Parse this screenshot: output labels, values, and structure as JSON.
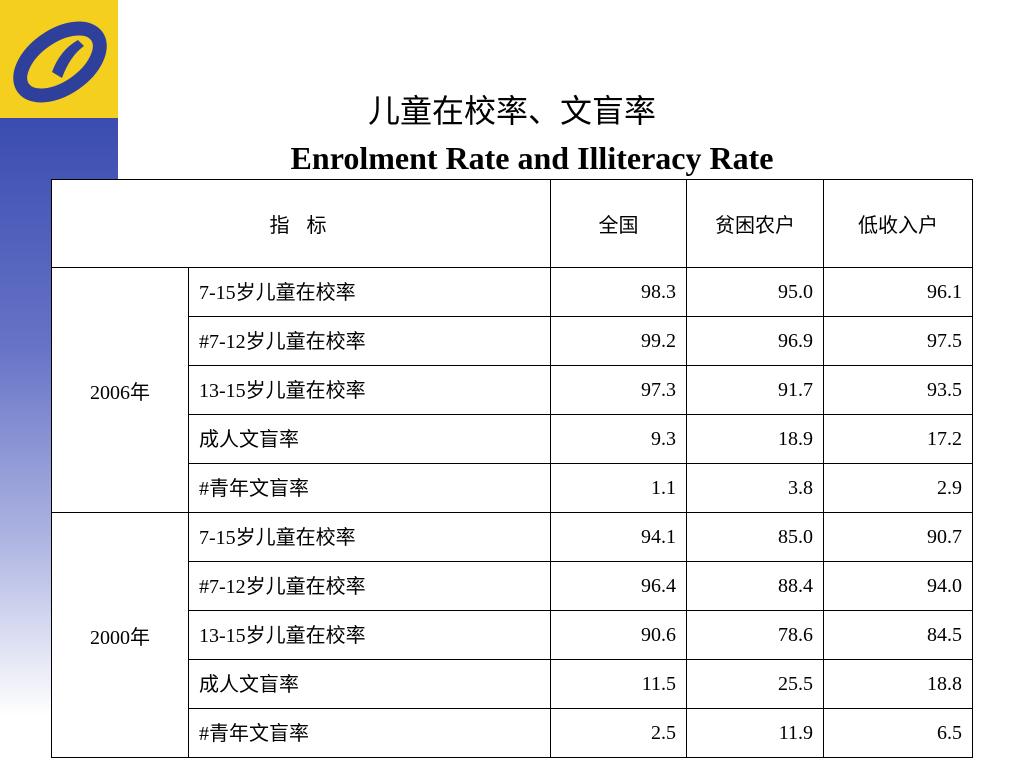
{
  "title_cn": "儿童在校率、文盲率",
  "title_en": "Enrolment Rate  and Illiteracy Rate",
  "headers": {
    "indicator": "指 标",
    "national": "全国",
    "poor": "贫困农户",
    "low_income": "低收入户"
  },
  "groups": [
    {
      "year": "2006年",
      "rows": [
        {
          "name": "7-15岁儿童在校率",
          "national": "98.3",
          "poor": "95.0",
          "low_income": "96.1"
        },
        {
          "name": "#7-12岁儿童在校率",
          "national": "99.2",
          "poor": "96.9",
          "low_income": "97.5"
        },
        {
          "name": "13-15岁儿童在校率",
          "national": "97.3",
          "poor": "91.7",
          "low_income": "93.5"
        },
        {
          "name": "成人文盲率",
          "national": "9.3",
          "poor": "18.9",
          "low_income": "17.2"
        },
        {
          "name": "#青年文盲率",
          "national": "1.1",
          "poor": "3.8",
          "low_income": "2.9"
        }
      ]
    },
    {
      "year": "2000年",
      "rows": [
        {
          "name": "7-15岁儿童在校率",
          "national": "94.1",
          "poor": "85.0",
          "low_income": "90.7"
        },
        {
          "name": "#7-12岁儿童在校率",
          "national": "96.4",
          "poor": "88.4",
          "low_income": "94.0"
        },
        {
          "name": "13-15岁儿童在校率",
          "national": "90.6",
          "poor": "78.6",
          "low_income": "84.5"
        },
        {
          "name": "成人文盲率",
          "national": "11.5",
          "poor": "25.5",
          "low_income": "18.8"
        },
        {
          "name": "#青年文盲率",
          "national": "2.5",
          "poor": "11.9",
          "low_income": "6.5"
        }
      ]
    }
  ],
  "colors": {
    "logo_background": "#f5cf1e",
    "logo_mark": "#2f3f9c",
    "sidebar_top": "#3b4cb0"
  },
  "icons": {
    "logo": "statistics-bureau-logo-icon"
  }
}
